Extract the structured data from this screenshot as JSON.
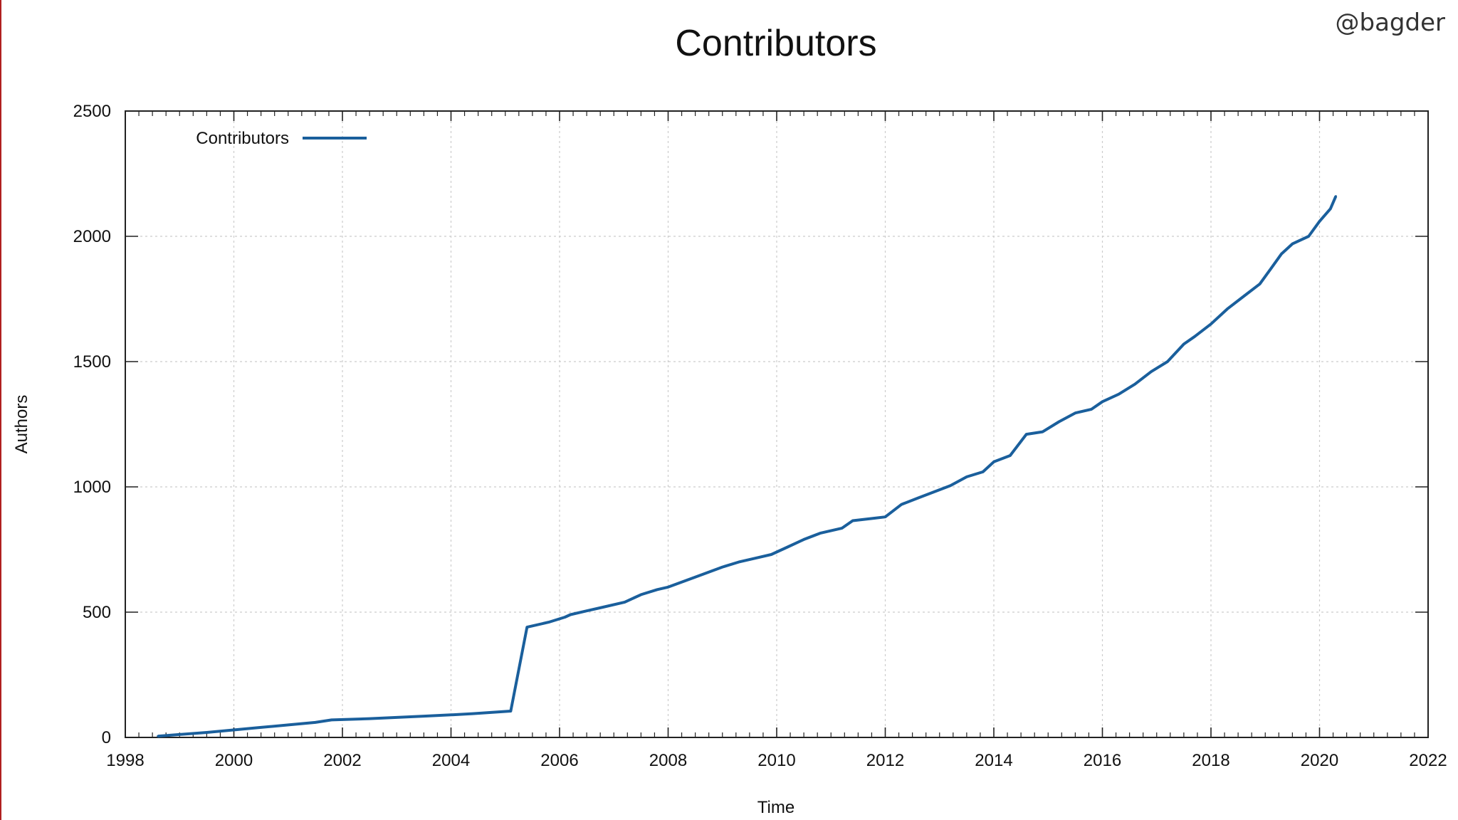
{
  "watermark": "@bagder",
  "colors": {
    "series": "#1a5f9c",
    "grid": "#cccccc",
    "axis": "#222222",
    "accent_rule": "#b02020"
  },
  "chart_data": {
    "type": "line",
    "title": "Contributors",
    "xlabel": "Time",
    "ylabel": "Authors",
    "xlim": [
      1998,
      2022
    ],
    "ylim": [
      0,
      2500
    ],
    "xticks": [
      1998,
      2000,
      2002,
      2004,
      2006,
      2008,
      2010,
      2012,
      2014,
      2016,
      2018,
      2020,
      2022
    ],
    "yticks": [
      0,
      500,
      1000,
      1500,
      2000,
      2500
    ],
    "xtick_labels": [
      "1998",
      "2000",
      "2002",
      "2004",
      "2006",
      "2008",
      "2010",
      "2012",
      "2014",
      "2016",
      "2018",
      "2020",
      "2022"
    ],
    "ytick_labels": [
      "0",
      "500",
      "1000",
      "1500",
      "2000",
      "2500"
    ],
    "grid": true,
    "legend": {
      "position": "top-left",
      "entries": [
        "Contributors"
      ]
    },
    "series": [
      {
        "name": "Contributors",
        "x": [
          1998.6,
          1999.5,
          2000.5,
          2001.5,
          2001.8,
          2002.5,
          2003.5,
          2004.0,
          2004.4,
          2005.1,
          2005.4,
          2005.8,
          2006.1,
          2006.2,
          2006.5,
          2006.8,
          2007.2,
          2007.5,
          2007.8,
          2008.0,
          2008.5,
          2009.0,
          2009.3,
          2009.6,
          2009.9,
          2010.2,
          2010.5,
          2010.8,
          2011.2,
          2011.4,
          2011.8,
          2012.0,
          2012.3,
          2012.6,
          2012.9,
          2013.2,
          2013.5,
          2013.8,
          2014.0,
          2014.3,
          2014.6,
          2014.9,
          2015.2,
          2015.5,
          2015.8,
          2016.0,
          2016.3,
          2016.6,
          2016.9,
          2017.2,
          2017.5,
          2017.7,
          2018.0,
          2018.3,
          2018.6,
          2018.9,
          2019.1,
          2019.3,
          2019.5,
          2019.8,
          2020.0,
          2020.2,
          2020.3
        ],
        "y": [
          5,
          20,
          40,
          60,
          70,
          75,
          85,
          90,
          95,
          105,
          440,
          460,
          480,
          490,
          505,
          520,
          540,
          570,
          590,
          600,
          640,
          680,
          700,
          715,
          730,
          760,
          790,
          815,
          835,
          865,
          875,
          880,
          930,
          955,
          980,
          1005,
          1040,
          1060,
          1100,
          1125,
          1210,
          1220,
          1260,
          1295,
          1310,
          1340,
          1370,
          1410,
          1460,
          1500,
          1570,
          1600,
          1650,
          1710,
          1760,
          1810,
          1870,
          1930,
          1970,
          2000,
          2060,
          2110,
          2160
        ]
      }
    ]
  }
}
